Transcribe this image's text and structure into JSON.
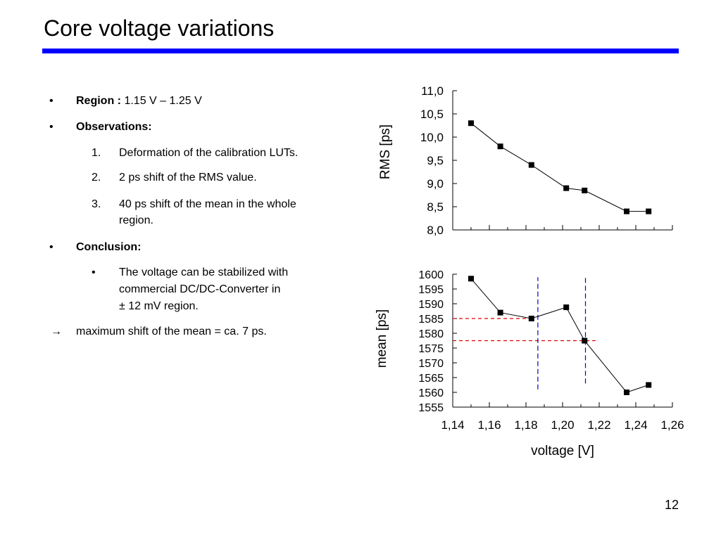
{
  "slide": {
    "title": "Core voltage variations",
    "page_number": "12"
  },
  "bullets": {
    "region_label": "Region :",
    "region_value": "1.15 V – 1.25 V",
    "observations_label": "Observations:",
    "observations": [
      {
        "num": "1.",
        "lines": [
          "Deformation of the calibration LUTs."
        ]
      },
      {
        "num": "2.",
        "lines": [
          "2 ps shift of the RMS value."
        ]
      },
      {
        "num": "3.",
        "lines": [
          "40 ps shift of the mean in the whole",
          "region."
        ]
      }
    ],
    "conclusion_label": "Conclusion:",
    "conclusion_lines": [
      "The voltage can be stabilized with",
      "commercial DC/DC-Converter in",
      "± 12 mV region."
    ],
    "arrow_text": "maximum shift of the mean = ca. 7 ps.",
    "bullet_glyph": "•",
    "arrow_glyph": "→"
  },
  "chart_data": [
    {
      "type": "line",
      "ylabel": "RMS [ps]",
      "x": [
        1.15,
        1.166,
        1.183,
        1.202,
        1.212,
        1.235,
        1.247
      ],
      "values": [
        10.3,
        9.8,
        9.4,
        8.9,
        8.85,
        8.4,
        8.4
      ],
      "xlim": [
        1.14,
        1.26
      ],
      "ylim": [
        8.0,
        11.0
      ],
      "yticks": [
        "8,0",
        "8,5",
        "9,0",
        "9,5",
        "10,0",
        "10,5",
        "11,0"
      ],
      "ytick_values": [
        8.0,
        8.5,
        9.0,
        9.5,
        10.0,
        10.5,
        11.0
      ],
      "marker": "square",
      "line_color": "#000000"
    },
    {
      "type": "line",
      "ylabel": "mean [ps]",
      "xlabel": "voltage [V]",
      "x": [
        1.15,
        1.166,
        1.183,
        1.202,
        1.212,
        1.235,
        1.247
      ],
      "values": [
        1598.5,
        1587,
        1585,
        1588.8,
        1577.5,
        1560,
        1562.5
      ],
      "xlim": [
        1.14,
        1.26
      ],
      "ylim": [
        1555,
        1600
      ],
      "yticks": [
        "1555",
        "1560",
        "1565",
        "1570",
        "1575",
        "1580",
        "1585",
        "1590",
        "1595",
        "1600"
      ],
      "ytick_values": [
        1555,
        1560,
        1565,
        1570,
        1575,
        1580,
        1585,
        1590,
        1595,
        1600
      ],
      "xticks": [
        "1,14",
        "1,16",
        "1,18",
        "1,20",
        "1,22",
        "1,24",
        "1,26"
      ],
      "xtick_values": [
        1.14,
        1.16,
        1.18,
        1.2,
        1.22,
        1.24,
        1.26
      ],
      "marker": "square",
      "line_color": "#000000",
      "annotations": {
        "horizontal_lines": [
          {
            "y": 1585,
            "x_from": 1.14,
            "x_to": 1.183,
            "color": "#dd0000"
          },
          {
            "y": 1577.5,
            "x_from": 1.14,
            "x_to": 1.218,
            "color": "#dd0000"
          }
        ],
        "vertical_lines": [
          {
            "x": 1.1865,
            "y_from": 1561,
            "y_to": 1599,
            "color": "#0000cc"
          },
          {
            "x": 1.2125,
            "y_from": 1563,
            "y_to": 1599,
            "color": "#0000cc"
          }
        ]
      }
    }
  ]
}
